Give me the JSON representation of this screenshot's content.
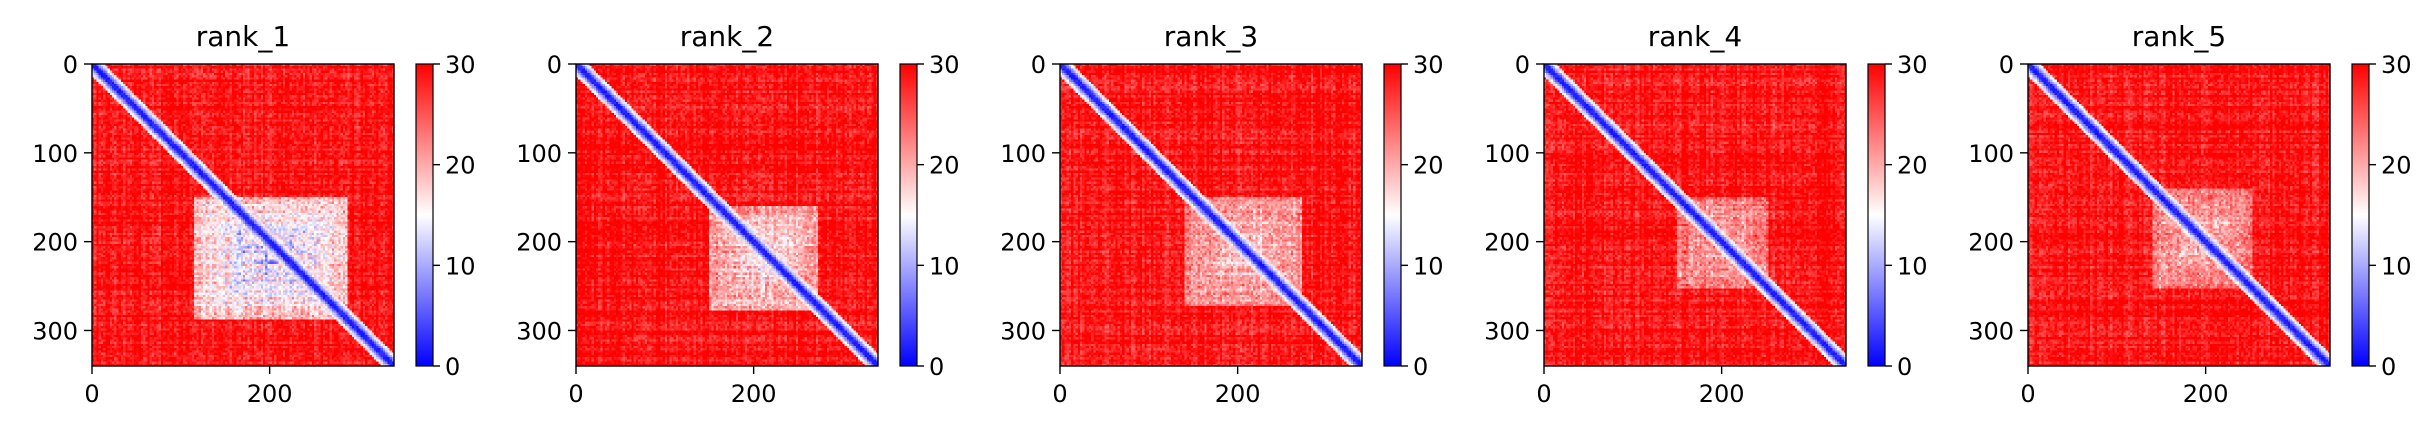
{
  "chart_data": [
    {
      "type": "heatmap",
      "title": "rank_1",
      "x_ticks": [
        0,
        200
      ],
      "y_ticks": [
        0,
        100,
        200,
        300
      ],
      "xlim": [
        0,
        340
      ],
      "ylim": [
        340,
        0
      ],
      "colorbar": {
        "min": 0,
        "max": 30,
        "ticks": [
          0,
          10,
          20,
          30
        ],
        "colormap": "bwr"
      },
      "low_error_block": {
        "x": [
          115,
          285
        ],
        "y": [
          150,
          285
        ],
        "strength": 1.0
      }
    },
    {
      "type": "heatmap",
      "title": "rank_2",
      "x_ticks": [
        0,
        200
      ],
      "y_ticks": [
        0,
        100,
        200,
        300
      ],
      "xlim": [
        0,
        340
      ],
      "ylim": [
        340,
        0
      ],
      "colorbar": {
        "min": 0,
        "max": 30,
        "ticks": [
          0,
          10,
          20,
          30
        ],
        "colormap": "bwr"
      },
      "low_error_block": {
        "x": [
          150,
          270
        ],
        "y": [
          160,
          275
        ],
        "strength": 0.75
      }
    },
    {
      "type": "heatmap",
      "title": "rank_3",
      "x_ticks": [
        0,
        200
      ],
      "y_ticks": [
        0,
        100,
        200,
        300
      ],
      "xlim": [
        0,
        340
      ],
      "ylim": [
        340,
        0
      ],
      "colorbar": {
        "min": 0,
        "max": 30,
        "ticks": [
          0,
          10,
          20,
          30
        ],
        "colormap": "bwr"
      },
      "low_error_block": {
        "x": [
          140,
          270
        ],
        "y": [
          150,
          270
        ],
        "strength": 0.6
      }
    },
    {
      "type": "heatmap",
      "title": "rank_4",
      "x_ticks": [
        0,
        200
      ],
      "y_ticks": [
        0,
        100,
        200,
        300
      ],
      "xlim": [
        0,
        340
      ],
      "ylim": [
        340,
        0
      ],
      "colorbar": {
        "min": 0,
        "max": 30,
        "ticks": [
          0,
          10,
          20,
          30
        ],
        "colormap": "bwr"
      },
      "low_error_block": {
        "x": [
          150,
          250
        ],
        "y": [
          150,
          250
        ],
        "strength": 0.45
      }
    },
    {
      "type": "heatmap",
      "title": "rank_5",
      "x_ticks": [
        0,
        200
      ],
      "y_ticks": [
        0,
        100,
        200,
        300
      ],
      "xlim": [
        0,
        340
      ],
      "ylim": [
        340,
        0
      ],
      "colorbar": {
        "min": 0,
        "max": 30,
        "ticks": [
          0,
          10,
          20,
          30
        ],
        "colormap": "bwr"
      },
      "low_error_block": {
        "x": [
          140,
          250
        ],
        "y": [
          140,
          250
        ],
        "strength": 0.55
      }
    }
  ],
  "colors": {
    "high": "#ff0000",
    "mid": "#ffffff",
    "low": "#0000ff"
  }
}
